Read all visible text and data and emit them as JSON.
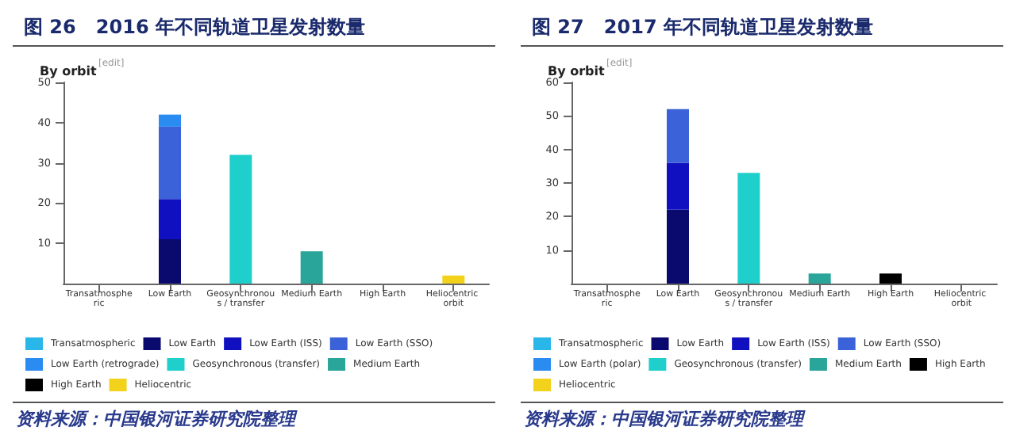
{
  "chart_data": [
    {
      "type": "bar",
      "title": "图 26   2016 年不同轨道卫星发射数量",
      "subtitle": "By orbit",
      "annotations": [
        "[edit]",
        "资料来源：中国银河证券研究院整理"
      ],
      "categories": [
        "Transatmospheric",
        "Low Earth",
        "Geosynchronous / transfer",
        "Medium Earth",
        "High Earth",
        "Heliocentric orbit"
      ],
      "stacked": true,
      "ylim": [
        0,
        50
      ],
      "yticks": [
        10,
        20,
        30,
        40,
        50
      ],
      "grid": false,
      "legend": "bottom",
      "series": [
        {
          "name": "Transatmospheric",
          "color": "#29b6e8",
          "values": [
            null,
            null,
            null,
            null,
            null,
            null
          ]
        },
        {
          "name": "Low Earth",
          "color": "#0a0a6e",
          "values": [
            null,
            11,
            null,
            null,
            null,
            null
          ]
        },
        {
          "name": "Low Earth (ISS)",
          "color": "#1010c0",
          "values": [
            null,
            10,
            null,
            null,
            null,
            null
          ]
        },
        {
          "name": "Low Earth (SSO)",
          "color": "#3b62d8",
          "values": [
            null,
            18,
            null,
            null,
            null,
            null
          ]
        },
        {
          "name": "Low Earth (retrograde)",
          "color": "#2a8cf0",
          "values": [
            null,
            3,
            null,
            null,
            null,
            null
          ]
        },
        {
          "name": "Geosynchronous (transfer)",
          "color": "#1fcfcb",
          "values": [
            null,
            null,
            32,
            null,
            null,
            null
          ]
        },
        {
          "name": "Medium Earth",
          "color": "#2aa59a",
          "values": [
            null,
            null,
            null,
            8,
            null,
            null
          ]
        },
        {
          "name": "High Earth",
          "color": "#000000",
          "values": [
            null,
            null,
            null,
            null,
            null,
            null
          ]
        },
        {
          "name": "Heliocentric",
          "color": "#f2d21a",
          "values": [
            null,
            null,
            null,
            null,
            null,
            2
          ]
        }
      ]
    },
    {
      "type": "bar",
      "title": "图 27   2017 年不同轨道卫星发射数量",
      "subtitle": "By orbit",
      "annotations": [
        "[edit]",
        "资料来源：中国银河证券研究院整理"
      ],
      "categories": [
        "Transatmospheric",
        "Low Earth",
        "Geosynchronous / transfer",
        "Medium Earth",
        "High Earth",
        "Heliocentric orbit"
      ],
      "stacked": true,
      "ylim": [
        0,
        60
      ],
      "yticks": [
        10,
        20,
        30,
        40,
        50,
        60
      ],
      "grid": false,
      "legend": "bottom",
      "series": [
        {
          "name": "Transatmospheric",
          "color": "#29b6e8",
          "values": [
            null,
            null,
            null,
            null,
            null,
            null
          ]
        },
        {
          "name": "Low Earth",
          "color": "#0a0a6e",
          "values": [
            null,
            22,
            null,
            null,
            null,
            null
          ]
        },
        {
          "name": "Low Earth (ISS)",
          "color": "#1010c0",
          "values": [
            null,
            14,
            null,
            null,
            null,
            null
          ]
        },
        {
          "name": "Low Earth (SSO)",
          "color": "#3b62d8",
          "values": [
            null,
            16,
            null,
            null,
            null,
            null
          ]
        },
        {
          "name": "Low Earth (polar)",
          "color": "#2a8cf0",
          "values": [
            null,
            null,
            null,
            null,
            null,
            null
          ]
        },
        {
          "name": "Geosynchronous (transfer)",
          "color": "#1fcfcb",
          "values": [
            null,
            null,
            33,
            null,
            null,
            null
          ]
        },
        {
          "name": "Medium Earth",
          "color": "#2aa59a",
          "values": [
            null,
            null,
            null,
            3,
            null,
            null
          ]
        },
        {
          "name": "High Earth",
          "color": "#000000",
          "values": [
            null,
            null,
            null,
            null,
            3,
            null
          ]
        },
        {
          "name": "Heliocentric",
          "color": "#f2d21a",
          "values": [
            null,
            null,
            null,
            null,
            null,
            null
          ]
        }
      ]
    }
  ]
}
